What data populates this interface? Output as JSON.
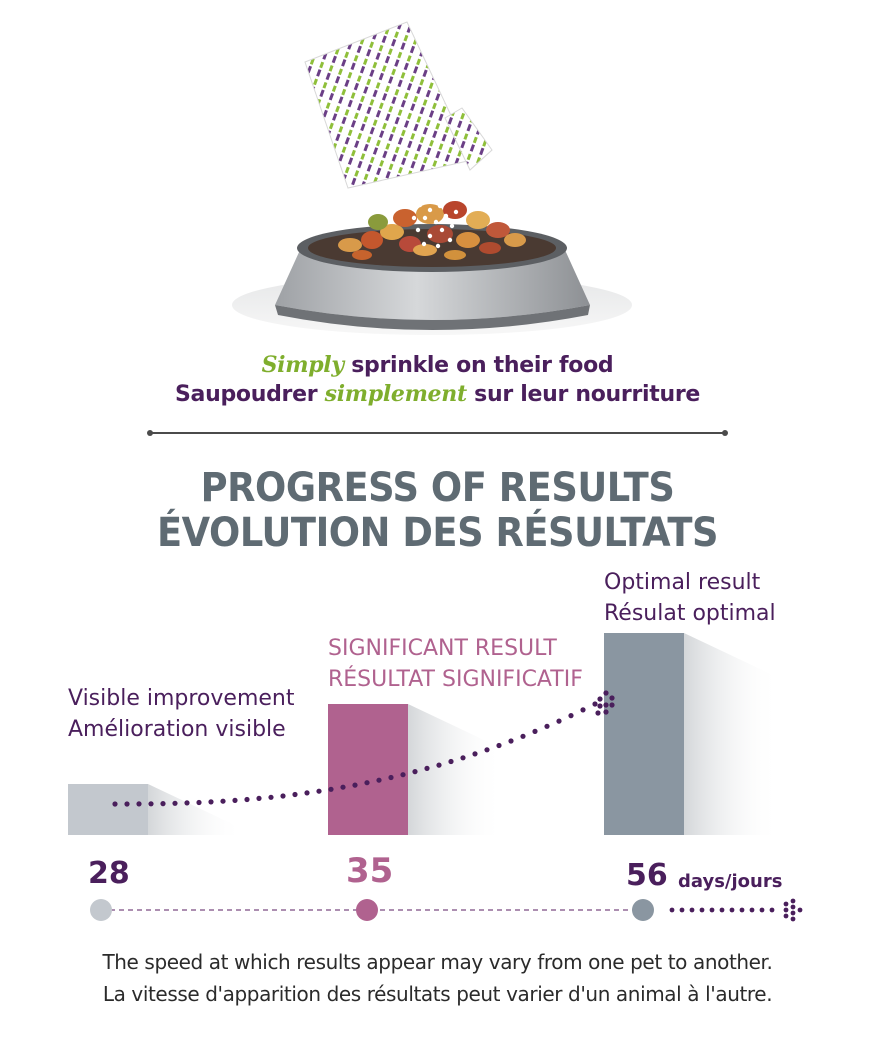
{
  "header": {
    "line1_accent": "Simply",
    "line1_rest": " sprinkle on their food",
    "line2_start": "Saupoudrer ",
    "line2_accent": "simplement",
    "line2_rest": " sur leur nourriture"
  },
  "section": {
    "title_en": "PROGRESS OF RESULTS",
    "title_fr": "ÉVOLUTION DES RÉSULTATS"
  },
  "stages": [
    {
      "day": "28",
      "label_en": "Visible improvement",
      "label_fr": "Amélioration visible",
      "level": 0.25,
      "color": "#c3c8ce"
    },
    {
      "day": "35",
      "label_en": "SIGNIFICANT RESULT",
      "label_fr": "RÉSULTAT SIGNIFICATIF",
      "level": 0.65,
      "color": "#b0628f"
    },
    {
      "day": "56",
      "label_en": "Optimal result",
      "label_fr": "Résulat optimal",
      "level": 1.0,
      "color": "#8a96a1"
    }
  ],
  "timeline": {
    "unit": "days/jours"
  },
  "footnote": {
    "en": "The speed at which results appear may vary from one pet to another.",
    "fr": "La vitesse d'apparition des résultats peut varier d'un animal à l'autre."
  },
  "colors": {
    "purple": "#4a1f5c",
    "green": "#7fae2d",
    "pink": "#b0628f",
    "slate": "#5f6b73"
  }
}
